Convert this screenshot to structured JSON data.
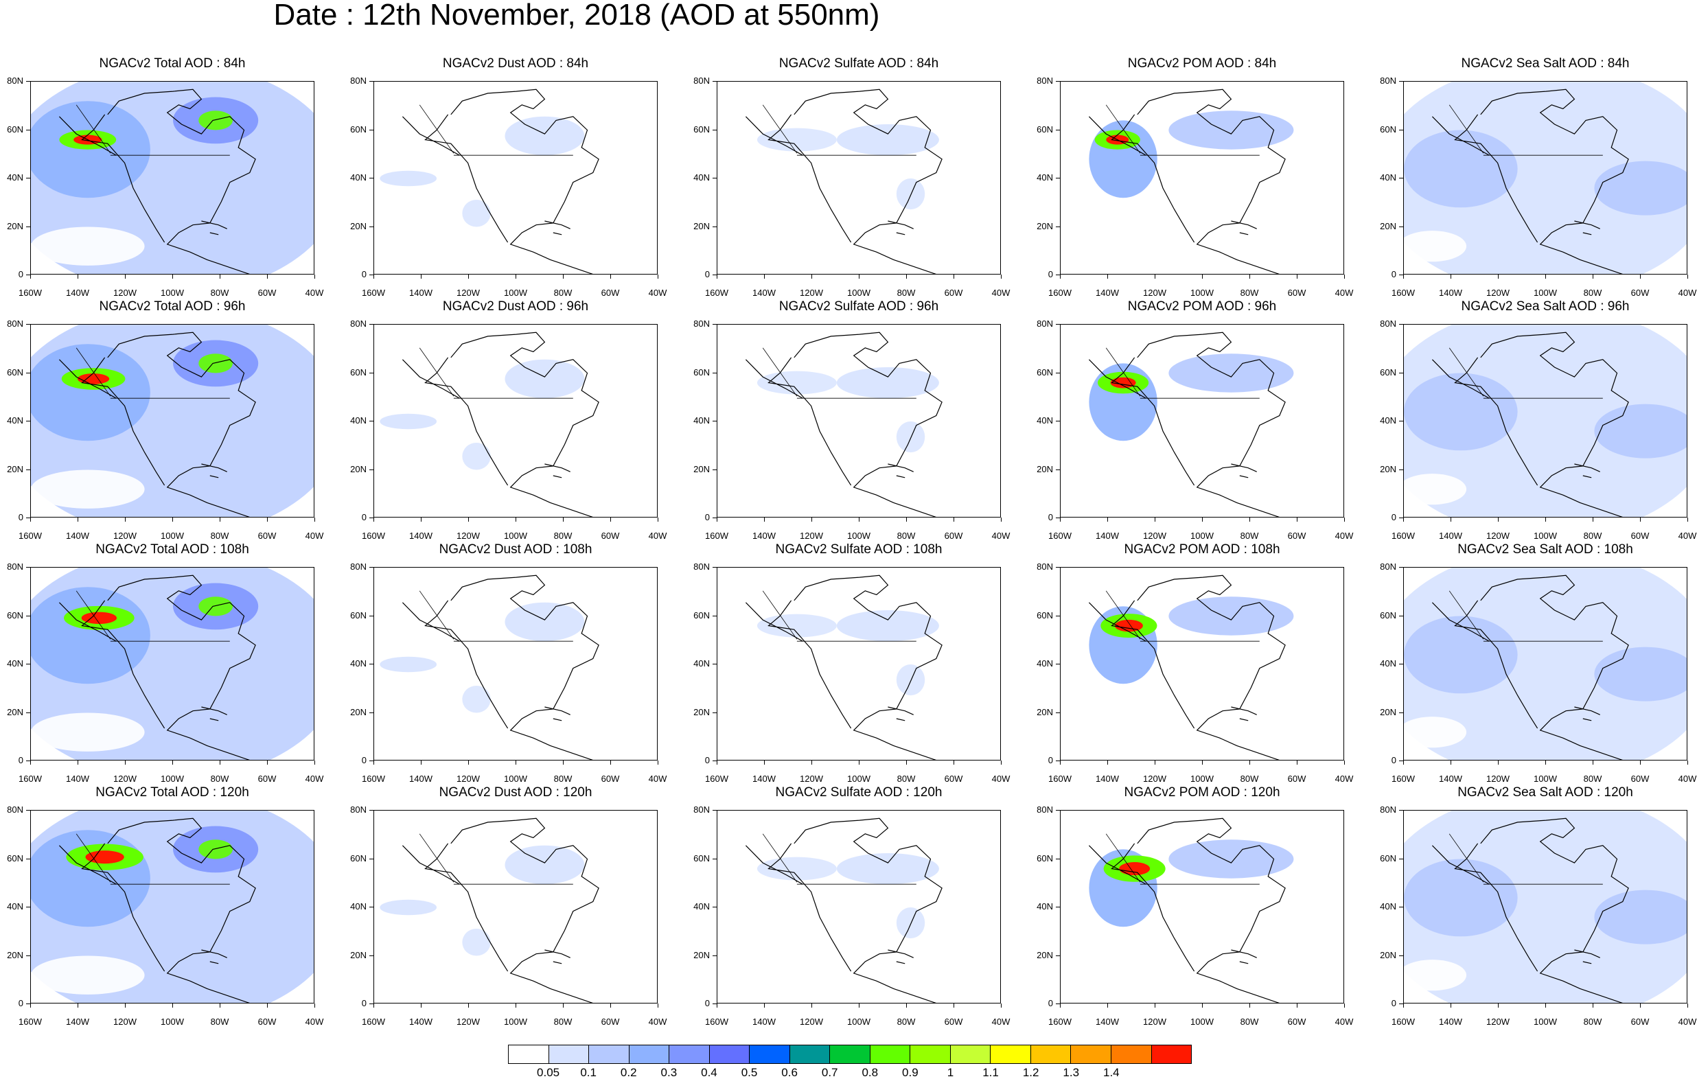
{
  "title": "Date : 12th November, 2018 (AOD at 550nm)",
  "map": {
    "lon_labels": [
      "160W",
      "140W",
      "120W",
      "100W",
      "80W",
      "60W",
      "40W"
    ],
    "lat_labels": [
      "80N",
      "60N",
      "40N",
      "20N",
      "0"
    ],
    "lon_range": [
      -160,
      -40
    ],
    "lat_range": [
      0,
      80
    ]
  },
  "rows": [
    [
      "NGACv2 Total AOD : 84h",
      "NGACv2 Dust AOD : 84h",
      "NGACv2 Sulfate AOD : 84h",
      "NGACv2 POM AOD : 84h",
      "NGACv2 Sea Salt AOD : 84h"
    ],
    [
      "NGACv2 Total AOD : 96h",
      "NGACv2 Dust AOD : 96h",
      "NGACv2 Sulfate AOD : 96h",
      "NGACv2 POM AOD : 96h",
      "NGACv2 Sea Salt AOD : 96h"
    ],
    [
      "NGACv2 Total AOD : 108h",
      "NGACv2 Dust AOD : 108h",
      "NGACv2 Sulfate AOD : 108h",
      "NGACv2 POM AOD : 108h",
      "NGACv2 Sea Salt AOD : 108h"
    ],
    [
      "NGACv2 Total AOD : 120h",
      "NGACv2 Dust AOD : 120h",
      "NGACv2 Sulfate AOD : 120h",
      "NGACv2 POM AOD : 120h",
      "NGACv2 Sea Salt  AOD : 120h"
    ]
  ],
  "colorbar": {
    "labels": [
      "0.05",
      "0.1",
      "0.2",
      "0.3",
      "0.4",
      "0.5",
      "0.6",
      "0.7",
      "0.8",
      "0.9",
      "1",
      "1.1",
      "1.2",
      "1.3",
      "1.4"
    ],
    "colors": [
      "#ffffff",
      "#d6e2ff",
      "#b5c9ff",
      "#8eb2ff",
      "#7f96ff",
      "#6370ff",
      "#0063ff",
      "#009696",
      "#00c633",
      "#63ff00",
      "#96ff00",
      "#c6ff33",
      "#ffff00",
      "#ffc600",
      "#ffa000",
      "#ff7c00",
      "#ff1900"
    ]
  }
}
